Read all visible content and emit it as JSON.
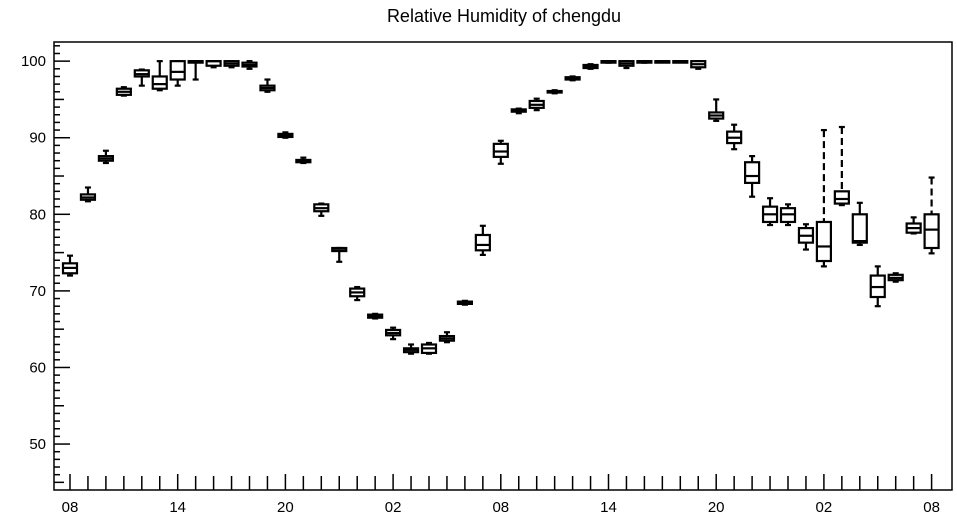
{
  "chart_data": {
    "type": "box",
    "title": "Relative Humidity of chengdu",
    "xlabel": "",
    "ylabel": "",
    "ylim": [
      44,
      102.5
    ],
    "y_ticks": [
      50,
      60,
      70,
      80,
      90,
      100
    ],
    "x_tick_labels": [
      "08",
      "14",
      "20",
      "02",
      "08",
      "14",
      "20",
      "02",
      "08"
    ],
    "x_tick_label_hours": [
      0,
      6,
      12,
      18,
      24,
      30,
      36,
      42,
      48
    ],
    "grid": false,
    "series": [
      {
        "hour": 0,
        "min": 72.0,
        "q1": 72.3,
        "median": 73.0,
        "q3": 73.6,
        "max": 74.6
      },
      {
        "hour": 1,
        "min": 81.7,
        "q1": 81.9,
        "median": 82.2,
        "q3": 82.6,
        "max": 83.5
      },
      {
        "hour": 2,
        "min": 86.7,
        "q1": 87.0,
        "median": 87.3,
        "q3": 87.6,
        "max": 88.3
      },
      {
        "hour": 3,
        "min": 95.5,
        "q1": 95.6,
        "median": 96.0,
        "q3": 96.4,
        "max": 96.6
      },
      {
        "hour": 4,
        "min": 96.8,
        "q1": 98.0,
        "median": 98.3,
        "q3": 98.8,
        "max": 98.9
      },
      {
        "hour": 5,
        "min": 96.2,
        "q1": 96.4,
        "median": 97.0,
        "q3": 98.0,
        "max": 100.0
      },
      {
        "hour": 6,
        "min": 96.8,
        "q1": 97.6,
        "median": 98.6,
        "q3": 100.0,
        "max": 100.0
      },
      {
        "hour": 7,
        "min": 97.6,
        "q1": 100.0,
        "median": 100.0,
        "q3": 100.0,
        "max": 100.0
      },
      {
        "hour": 8,
        "min": 99.2,
        "q1": 99.4,
        "median": 100.0,
        "q3": 100.0,
        "max": 100.0
      },
      {
        "hour": 9,
        "min": 99.2,
        "q1": 99.4,
        "median": 99.7,
        "q3": 100.0,
        "max": 100.0
      },
      {
        "hour": 10,
        "min": 99.0,
        "q1": 99.3,
        "median": 99.5,
        "q3": 99.8,
        "max": 100.0
      },
      {
        "hour": 11,
        "min": 96.0,
        "q1": 96.2,
        "median": 96.5,
        "q3": 96.8,
        "max": 97.6
      },
      {
        "hour": 12,
        "min": 90.0,
        "q1": 90.1,
        "median": 90.3,
        "q3": 90.5,
        "max": 90.7
      },
      {
        "hour": 13,
        "min": 86.7,
        "q1": 86.8,
        "median": 87.0,
        "q3": 87.1,
        "max": 87.4
      },
      {
        "hour": 14,
        "min": 79.8,
        "q1": 80.4,
        "median": 80.8,
        "q3": 81.3,
        "max": 81.4
      },
      {
        "hour": 15,
        "min": 73.8,
        "q1": 75.2,
        "median": 75.5,
        "q3": 75.6,
        "max": 75.6
      },
      {
        "hour": 16,
        "min": 68.8,
        "q1": 69.3,
        "median": 69.8,
        "q3": 70.3,
        "max": 70.5
      },
      {
        "hour": 17,
        "min": 66.4,
        "q1": 66.5,
        "median": 66.7,
        "q3": 66.9,
        "max": 67.0
      },
      {
        "hour": 18,
        "min": 63.7,
        "q1": 64.2,
        "median": 64.5,
        "q3": 64.9,
        "max": 65.2
      },
      {
        "hour": 19,
        "min": 61.8,
        "q1": 62.0,
        "median": 62.3,
        "q3": 62.5,
        "max": 63.0
      },
      {
        "hour": 20,
        "min": 61.8,
        "q1": 61.9,
        "median": 62.5,
        "q3": 63.0,
        "max": 63.2
      },
      {
        "hour": 21,
        "min": 63.3,
        "q1": 63.5,
        "median": 63.8,
        "q3": 64.1,
        "max": 64.6
      },
      {
        "hour": 22,
        "min": 68.2,
        "q1": 68.3,
        "median": 68.5,
        "q3": 68.6,
        "max": 68.7
      },
      {
        "hour": 23,
        "min": 74.7,
        "q1": 75.3,
        "median": 76.0,
        "q3": 77.3,
        "max": 78.5
      },
      {
        "hour": 24,
        "min": 86.6,
        "q1": 87.5,
        "median": 88.2,
        "q3": 89.2,
        "max": 89.6
      },
      {
        "hour": 25,
        "min": 93.2,
        "q1": 93.4,
        "median": 93.6,
        "q3": 93.7,
        "max": 93.8
      },
      {
        "hour": 26,
        "min": 93.6,
        "q1": 93.9,
        "median": 94.3,
        "q3": 94.8,
        "max": 95.1
      },
      {
        "hour": 27,
        "min": 95.8,
        "q1": 95.9,
        "median": 96.0,
        "q3": 96.1,
        "max": 96.2
      },
      {
        "hour": 28,
        "min": 97.5,
        "q1": 97.6,
        "median": 97.8,
        "q3": 97.9,
        "max": 98.0
      },
      {
        "hour": 29,
        "min": 99.0,
        "q1": 99.1,
        "median": 99.3,
        "q3": 99.5,
        "max": 99.6
      },
      {
        "hour": 30,
        "min": 99.8,
        "q1": 99.9,
        "median": 100.0,
        "q3": 100.0,
        "max": 100.0
      },
      {
        "hour": 31,
        "min": 99.1,
        "q1": 99.4,
        "median": 99.7,
        "q3": 100.0,
        "max": 100.0
      },
      {
        "hour": 32,
        "min": 99.8,
        "q1": 99.9,
        "median": 100.0,
        "q3": 100.0,
        "max": 100.0
      },
      {
        "hour": 33,
        "min": 100.0,
        "q1": 100.0,
        "median": 100.0,
        "q3": 100.0,
        "max": 100.0
      },
      {
        "hour": 34,
        "min": 100.0,
        "q1": 100.0,
        "median": 100.0,
        "q3": 100.0,
        "max": 100.0
      },
      {
        "hour": 35,
        "min": 99.0,
        "q1": 99.2,
        "median": 99.6,
        "q3": 100.0,
        "max": 100.0
      },
      {
        "hour": 36,
        "min": 92.2,
        "q1": 92.5,
        "median": 92.9,
        "q3": 93.3,
        "max": 95.0
      },
      {
        "hour": 37,
        "min": 88.5,
        "q1": 89.3,
        "median": 90.0,
        "q3": 90.8,
        "max": 91.7
      },
      {
        "hour": 38,
        "min": 82.3,
        "q1": 84.1,
        "median": 85.0,
        "q3": 86.8,
        "max": 87.6
      },
      {
        "hour": 39,
        "min": 78.6,
        "q1": 79.0,
        "median": 80.0,
        "q3": 81.0,
        "max": 82.1
      },
      {
        "hour": 40,
        "min": 78.6,
        "q1": 79.0,
        "median": 80.0,
        "q3": 80.8,
        "max": 81.3
      },
      {
        "hour": 41,
        "min": 75.4,
        "q1": 76.3,
        "median": 77.2,
        "q3": 78.2,
        "max": 78.7
      },
      {
        "hour": 42,
        "min": 73.2,
        "q1": 73.9,
        "median": 75.8,
        "q3": 79.0,
        "max": 91.0
      },
      {
        "hour": 43,
        "min": 81.2,
        "q1": 81.4,
        "median": 82.0,
        "q3": 83.0,
        "max": 91.4
      },
      {
        "hour": 44,
        "min": 76.0,
        "q1": 76.3,
        "median": 76.5,
        "q3": 80.0,
        "max": 81.5
      },
      {
        "hour": 45,
        "min": 68.0,
        "q1": 69.2,
        "median": 70.5,
        "q3": 72.0,
        "max": 73.2
      },
      {
        "hour": 46,
        "min": 71.2,
        "q1": 71.4,
        "median": 71.7,
        "q3": 72.1,
        "max": 72.3
      },
      {
        "hour": 47,
        "min": 77.5,
        "q1": 77.6,
        "median": 78.2,
        "q3": 78.8,
        "max": 79.6
      },
      {
        "hour": 48,
        "min": 74.9,
        "q1": 75.6,
        "median": 78.0,
        "q3": 80.0,
        "max": 84.8
      }
    ]
  }
}
